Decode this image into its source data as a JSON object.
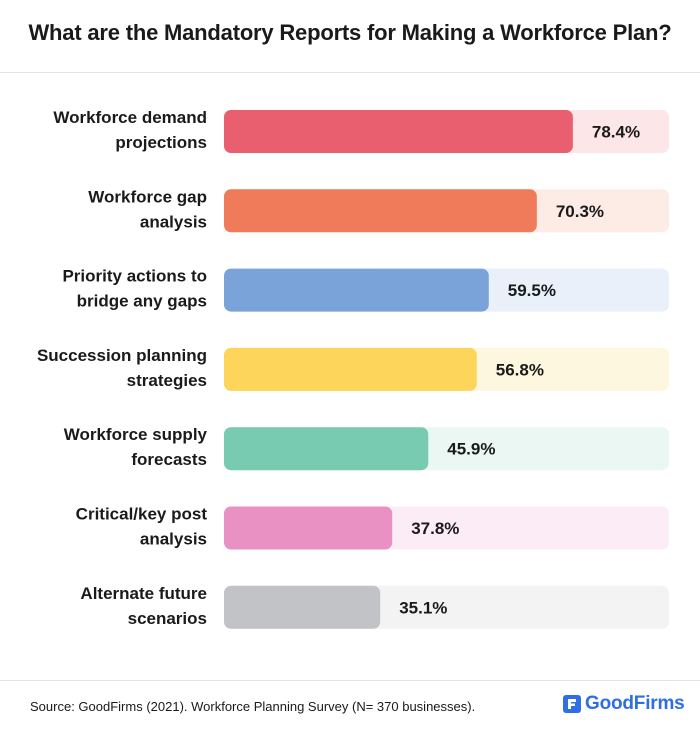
{
  "chart_data": {
    "type": "bar",
    "orientation": "horizontal",
    "title": "What are the Mandatory Reports for Making a Workforce Plan?",
    "categories": [
      [
        "Workforce demand",
        "projections"
      ],
      [
        "Workforce gap",
        "analysis"
      ],
      [
        "Priority actions to",
        "bridge any gaps"
      ],
      [
        "Succession planning",
        "strategies"
      ],
      [
        "Workforce supply",
        "forecasts"
      ],
      [
        "Critical/key post",
        "analysis"
      ],
      [
        "Alternate future",
        "scenarios"
      ]
    ],
    "values": [
      78.4,
      70.3,
      59.5,
      56.8,
      45.9,
      37.8,
      35.1
    ],
    "value_labels": [
      "78.4%",
      "70.3%",
      "59.5%",
      "56.8%",
      "45.9%",
      "37.8%",
      "35.1%"
    ],
    "xlim": [
      0,
      100
    ],
    "bar_colors": [
      "#ea5f6f",
      "#ef7b5a",
      "#7aa3d9",
      "#fcd55a",
      "#78cbb0",
      "#e991c3",
      "#c2c3c6"
    ],
    "track_colors": [
      "#fde6e7",
      "#fdebe6",
      "#e9f0fa",
      "#fef7df",
      "#eaf7f2",
      "#fcecf5",
      "#f3f3f4"
    ],
    "grid": false,
    "legend": "none"
  },
  "footer": {
    "source": "Source: GoodFirms (2021). Workforce Planning Survey (N= 370 businesses).",
    "brand": "GoodFirms",
    "brand_icon": "goodfirms-logo-icon",
    "brand_color": "#2f6fe4"
  }
}
